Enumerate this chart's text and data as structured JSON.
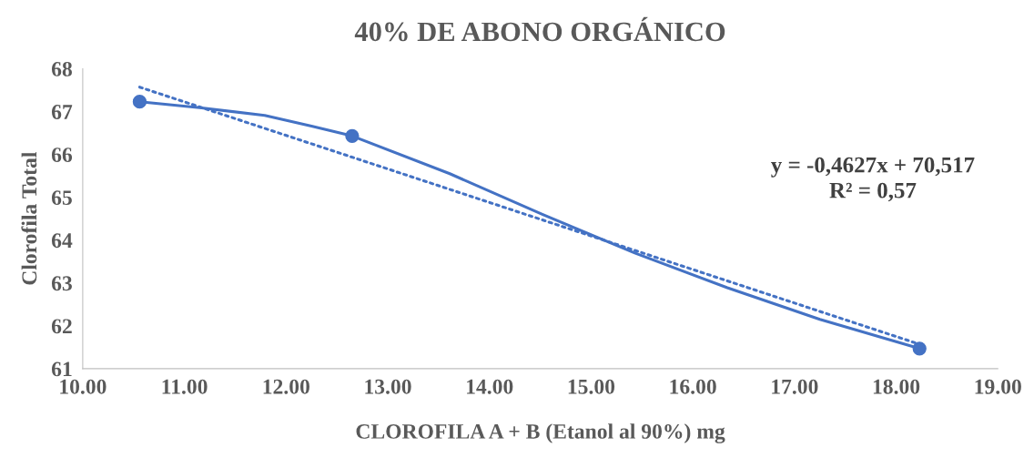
{
  "chart_data": {
    "type": "line",
    "title": "40% DE ABONO ORGÁNICO",
    "xlabel": "CLOROFILA A + B (Etanol al 90%) mg",
    "ylabel": "Clorofila Total",
    "series": [
      {
        "color": "#4472c4",
        "x": [
          10.56,
          11.15,
          11.79,
          12.25,
          12.65,
          13.61,
          14.52,
          15.43,
          16.34,
          17.25,
          18.23
        ],
        "values": [
          67.23,
          67.09,
          66.91,
          66.66,
          66.43,
          65.55,
          64.6,
          63.7,
          62.89,
          62.15,
          61.47
        ],
        "marker": "none",
        "line_style": "solid"
      },
      {
        "type": "scatter",
        "color": "#4472c4",
        "x": [
          10.56,
          12.65,
          18.23
        ],
        "values": [
          67.23,
          66.43,
          61.47
        ],
        "marker": "circle"
      },
      {
        "color": "#4472c4",
        "x": [
          10.56,
          18.23
        ],
        "values": [
          67.57,
          61.57
        ],
        "marker": "none",
        "line_style": "dotted"
      }
    ],
    "xlim": [
      10,
      19
    ],
    "xticks": [
      {
        "value": 10,
        "label": "10.00"
      },
      {
        "value": 11,
        "label": "11.00"
      },
      {
        "value": 12,
        "label": "12.00"
      },
      {
        "value": 13,
        "label": "13.00"
      },
      {
        "value": 14,
        "label": "14.00"
      },
      {
        "value": 15,
        "label": "15.00"
      },
      {
        "value": 16,
        "label": "16.00"
      },
      {
        "value": 17,
        "label": "17.00"
      },
      {
        "value": 18,
        "label": "18.00"
      },
      {
        "value": 19,
        "label": "19.00"
      }
    ],
    "ylim": [
      61,
      68
    ],
    "yticks": [
      61,
      62,
      63,
      64,
      65,
      66,
      67,
      68
    ],
    "annotations": [
      "y = -0,4627x + 70,517\nR² = 0,57"
    ],
    "grid": false,
    "legend": false
  }
}
